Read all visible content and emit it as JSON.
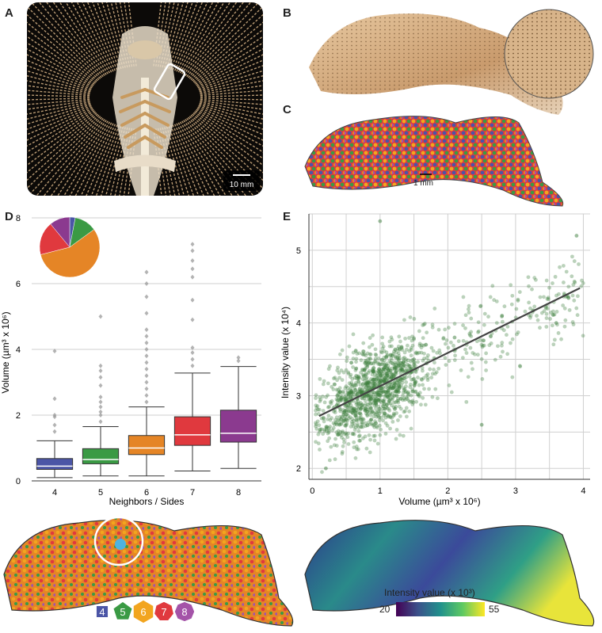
{
  "panels": {
    "a": {
      "letter": "A",
      "scalebar": "10 mm"
    },
    "b": {
      "letter": "B"
    },
    "c": {
      "letter": "C",
      "scalebar": "1 mm"
    },
    "d": {
      "letter": "D"
    },
    "e": {
      "letter": "E"
    }
  },
  "legend_polygons": [
    {
      "label": "4",
      "color": "#4b55a6"
    },
    {
      "label": "5",
      "color": "#3a9a44"
    },
    {
      "label": "6",
      "color": "#f2a51f"
    },
    {
      "label": "7",
      "color": "#e0393e"
    },
    {
      "label": "8",
      "color": "#a453a8"
    }
  ],
  "colorbar": {
    "label": "Intensity value (x 10³)",
    "min": "20",
    "max": "55"
  },
  "chart_data": [
    {
      "id": "panel-d",
      "type": "box",
      "xlabel": "Neighbors / Sides",
      "ylabel": "Volume (µm³ x 10⁶)",
      "ylim": [
        0,
        8
      ],
      "yticks": [
        "0",
        "2",
        "4",
        "6",
        "8"
      ],
      "grid": "horizontal",
      "categories": [
        "4",
        "5",
        "6",
        "7",
        "8"
      ],
      "colors": [
        "#4b55a6",
        "#3a9a44",
        "#e58526",
        "#e0393e",
        "#8b3a8f"
      ],
      "boxes": [
        {
          "q1": 0.35,
          "median": 0.45,
          "q3": 0.68,
          "whisker_low": 0.1,
          "whisker_high": 1.22,
          "outliers": [
            1.5,
            1.7,
            1.95,
            2.0,
            2.5,
            3.95
          ]
        },
        {
          "q1": 0.52,
          "median": 0.65,
          "q3": 0.98,
          "whisker_low": 0.15,
          "whisker_high": 1.65,
          "outliers": [
            1.8,
            2.0,
            2.1,
            2.25,
            2.4,
            2.55,
            2.9,
            3.15,
            3.35,
            3.5,
            5.0
          ]
        },
        {
          "q1": 0.8,
          "median": 1.0,
          "q3": 1.38,
          "whisker_low": 0.15,
          "whisker_high": 2.25,
          "outliers": [
            2.4,
            2.6,
            2.8,
            3.0,
            3.2,
            3.4,
            3.6,
            3.8,
            4.0,
            4.2,
            4.4,
            4.6,
            5.1,
            5.6,
            6.0,
            6.35
          ]
        },
        {
          "q1": 1.08,
          "median": 1.4,
          "q3": 1.95,
          "whisker_low": 0.3,
          "whisker_high": 3.28,
          "outliers": [
            3.5,
            3.7,
            3.9,
            4.05,
            4.9,
            5.5,
            6.2,
            6.45,
            6.7,
            7.0,
            7.2
          ]
        },
        {
          "q1": 1.18,
          "median": 1.45,
          "q3": 2.15,
          "whisker_low": 0.38,
          "whisker_high": 3.48,
          "outliers": [
            3.65,
            3.75
          ]
        }
      ],
      "inset_pie": {
        "values": [
          3,
          12,
          56,
          18,
          11
        ],
        "colors": [
          "#4b55a6",
          "#3a9a44",
          "#e58526",
          "#e0393e",
          "#8b3a8f"
        ]
      }
    },
    {
      "id": "panel-e",
      "type": "scatter",
      "xlabel": "Volume (µm³ x 10⁶)",
      "ylabel": "Intensity value (x 10⁴)",
      "xlim": [
        -0.05,
        4.1
      ],
      "ylim": [
        1.85,
        5.5
      ],
      "xticks": [
        "0",
        "1",
        "2",
        "3",
        "4"
      ],
      "yticks": [
        "2",
        "3",
        "4",
        "5"
      ],
      "grid": true,
      "point_color": "#3b7d3b",
      "trendline": {
        "x": [
          0.1,
          3.95
        ],
        "y": [
          2.72,
          4.48
        ]
      },
      "points_sample": [
        {
          "x": 0.6,
          "y": 2.8
        },
        {
          "x": 0.9,
          "y": 3.1
        },
        {
          "x": 1.1,
          "y": 3.3
        },
        {
          "x": 0.4,
          "y": 2.6
        },
        {
          "x": 1.5,
          "y": 3.5
        },
        {
          "x": 2.1,
          "y": 3.8
        },
        {
          "x": 2.8,
          "y": 4.1
        },
        {
          "x": 3.6,
          "y": 4.0
        },
        {
          "x": 1.0,
          "y": 5.4
        },
        {
          "x": 3.9,
          "y": 5.2
        },
        {
          "x": 0.2,
          "y": 2.0
        },
        {
          "x": 2.5,
          "y": 2.6
        }
      ]
    }
  ]
}
